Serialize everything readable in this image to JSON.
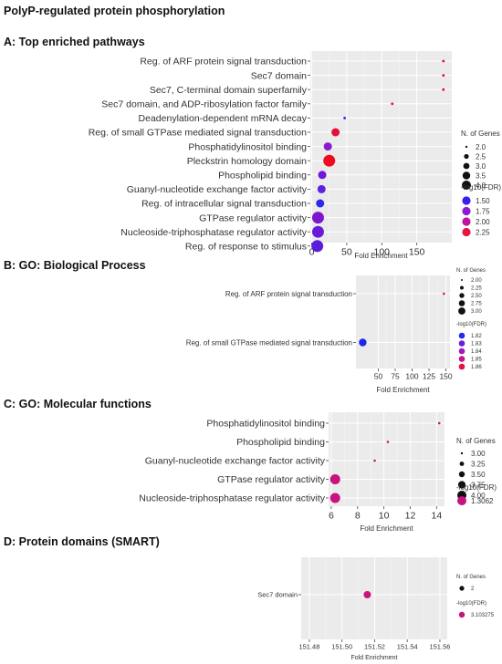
{
  "figure_title": "PolyP-regulated protein phosphorylation",
  "chart_data": [
    {
      "id": "A",
      "type": "scatter",
      "title": "A: Top enriched pathways",
      "xlabel": "Fold Enrichment",
      "ylabel": "",
      "xlim": [
        -2,
        200
      ],
      "xticks": [
        "0",
        "50",
        "100",
        "150"
      ],
      "xtick_values": [
        0,
        50,
        100,
        150
      ],
      "grid": true,
      "legend_position": "right",
      "categories": [
        "Reg. of ARF protein signal transduction",
        "Sec7 domain",
        "Sec7, C-terminal domain superfamily",
        "Sec7 domain, and ADP-ribosylation factor family",
        "Deadenylation-dependent mRNA decay",
        "Reg. of small GTPase mediated signal transduction",
        "Phosphatidylinositol binding",
        "Pleckstrin homology domain",
        "Phospholipid binding",
        "Guanyl-nucleotide exchange factor activity",
        "Reg. of intracellular signal transduction",
        "GTPase regulator activity",
        "Nucleoside-triphosphatase regulator activity",
        "Reg. of response to stimulus"
      ],
      "x": [
        188,
        188,
        188,
        115,
        47,
        34,
        23,
        25,
        15,
        14,
        12,
        9,
        9,
        8
      ],
      "size": [
        2,
        2,
        2,
        2,
        2,
        3,
        3,
        4,
        3,
        3,
        3,
        4,
        4,
        4
      ],
      "color": [
        "#e8082e",
        "#e8082e",
        "#e8082e",
        "#e0133f",
        "#3b22e6",
        "#e5103a",
        "#8a1bd0",
        "#ef0a22",
        "#6f18d8",
        "#5f22e0",
        "#2a2ae8",
        "#7a17cf",
        "#6a1ad6",
        "#5a1ddc"
      ],
      "legend_size": {
        "title": "N. of Genes",
        "labels": [
          "2.0",
          "2.5",
          "3.0",
          "3.5",
          "4.0"
        ]
      },
      "legend_color": {
        "title": "-log10(FDR)",
        "labels": [
          "1.50",
          "1.75",
          "2.00",
          "2.25"
        ],
        "colors": [
          "#3a1df0",
          "#8c1ad2",
          "#c0129e",
          "#e5153f"
        ]
      }
    },
    {
      "id": "B",
      "type": "scatter",
      "title": "B: GO: Biological Process",
      "xlabel": "Fold Enrichment",
      "ylabel": "",
      "xlim": [
        17,
        156
      ],
      "xticks": [
        "50",
        "75",
        "100",
        "125",
        "150"
      ],
      "xtick_values": [
        50,
        75,
        100,
        125,
        150
      ],
      "grid": true,
      "legend_position": "right",
      "categories": [
        "Reg. of ARF protein signal transduction",
        "Reg. of small GTPase mediated signal transduction"
      ],
      "x": [
        147,
        27
      ],
      "size": [
        2,
        3
      ],
      "color": [
        "#e8123a",
        "#1f26e8"
      ],
      "legend_size": {
        "title": "N. of Genes",
        "labels": [
          "2.00",
          "2.25",
          "2.50",
          "2.75",
          "3.00"
        ]
      },
      "legend_color": {
        "title": "-log10(FDR)",
        "labels": [
          "1.82",
          "1.83",
          "1.84",
          "1.85",
          "1.86"
        ],
        "colors": [
          "#2b27ea",
          "#6a1fd8",
          "#9e18bd",
          "#c8128f",
          "#e5143f"
        ]
      }
    },
    {
      "id": "C",
      "type": "scatter",
      "title": "C: GO: Molecular functions",
      "xlabel": "Fold Enrichment",
      "ylabel": "",
      "xlim": [
        5.8,
        14.6
      ],
      "xticks": [
        "6",
        "8",
        "10",
        "12",
        "14"
      ],
      "xtick_values": [
        6,
        8,
        10,
        12,
        14
      ],
      "grid": true,
      "legend_position": "right",
      "categories": [
        "Phosphatidylinositol binding",
        "Phospholipid binding",
        "Guanyl-nucleotide exchange factor activity",
        "GTPase regulator activity",
        "Nucleoside-triphosphatase regulator activity"
      ],
      "x": [
        14.2,
        10.3,
        9.3,
        6.3,
        6.3
      ],
      "size": [
        3,
        3,
        3,
        4,
        4
      ],
      "color": [
        "#c8127d",
        "#c8127d",
        "#c8127d",
        "#c8127d",
        "#c8127d"
      ],
      "legend_size": {
        "title": "N. of Genes",
        "labels": [
          "3.00",
          "3.25",
          "3.50",
          "3.75",
          "4.00"
        ]
      },
      "legend_color": {
        "title": "-log10(FDR)",
        "labels": [
          "1.3062"
        ],
        "colors": [
          "#c8127d"
        ]
      }
    },
    {
      "id": "D",
      "type": "scatter",
      "title": "D: Protein domains (SMART)",
      "xlabel": "Fold Enrichment",
      "ylabel": "",
      "xlim": [
        151.475,
        151.5645
      ],
      "xticks": [
        "151.48",
        "151.50",
        "151.52",
        "151.54",
        "151.56"
      ],
      "xtick_values": [
        151.48,
        151.5,
        151.52,
        151.54,
        151.56
      ],
      "grid": true,
      "legend_position": "right",
      "categories": [
        "Sec7 domain"
      ],
      "x": [
        151.5155
      ],
      "size": [
        2
      ],
      "color": [
        "#c8127d"
      ],
      "legend_size": {
        "title": "N. of Genes",
        "labels": [
          "2"
        ]
      },
      "legend_color": {
        "title": "-log10(FDR)",
        "labels": [
          "3.103275"
        ],
        "colors": [
          "#c8127d"
        ]
      }
    }
  ]
}
